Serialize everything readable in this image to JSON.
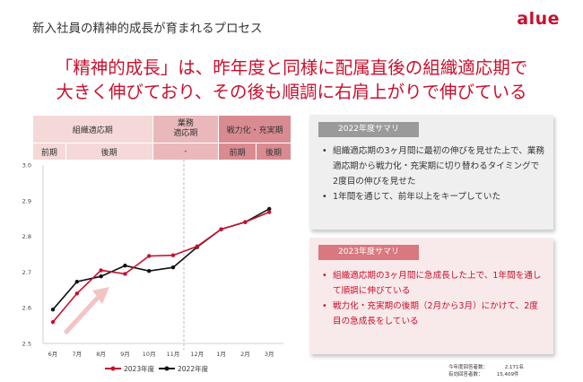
{
  "slide": {
    "title": "新入社員の精神的成長が育まれるプロセス",
    "logo": "alue",
    "headline_line1": "「精神的成長」は、昨年度と同様に配属直後の組織適応期で",
    "headline_line2": "大きく伸びており、その後も順調に右肩上がりで伸びている"
  },
  "phase_table": {
    "row1": [
      "組織適応期",
      "業務\n適応期",
      "戦力化・充実期"
    ],
    "row2": [
      "前期",
      "後期",
      "-",
      "前期",
      "後期"
    ]
  },
  "chart_data": {
    "type": "line",
    "categories": [
      "6月",
      "7月",
      "8月",
      "9月",
      "10月",
      "11月",
      "12月",
      "1月",
      "2月",
      "3月"
    ],
    "series": [
      {
        "name": "2023年度",
        "color": "#c8102e",
        "values": [
          2.56,
          2.64,
          2.705,
          2.695,
          2.745,
          2.747,
          2.772,
          2.82,
          2.84,
          2.868
        ]
      },
      {
        "name": "2022年度",
        "color": "#111111",
        "values": [
          2.595,
          2.673,
          2.688,
          2.718,
          2.703,
          2.713,
          2.77,
          2.82,
          2.84,
          2.877
        ]
      }
    ],
    "y_ticks": [
      "2.5",
      "2.6",
      "2.7",
      "2.8",
      "2.9",
      "3.0"
    ],
    "ylim": [
      2.5,
      3.0
    ],
    "grid": false,
    "legend_position": "bottom",
    "annotation_arrow_color": "#f2c4c4"
  },
  "summary_2022": {
    "tag": "2022年度サマリ",
    "bullets": [
      "組織適応期の3ヶ月間に最初の伸びを見せた上で、業務適応期から戦力化・充実期に切り替わるタイミングで2度目の伸びを見せた",
      "1年間を通じて、前年以上をキープしていた"
    ]
  },
  "summary_2023": {
    "tag": "2023年度サマリ",
    "bullets": [
      "組織適応期の3ヶ月間に急成長した上で、1年間を通して順調に伸びている",
      "戦力化・充実期の後期（2月から3月）にかけて、2度目の急成長をしている"
    ]
  },
  "footnote": {
    "line1_label": "今年度回答者数：",
    "line1_value": "2,171名",
    "line2_label": "有効回答者数：",
    "line2_value": "15,409件"
  },
  "colors": {
    "accent": "#c8102e",
    "phase_light": "#f5d8d8",
    "phase_mid": "#e9b8bb",
    "phase_dark": "#d98b92"
  }
}
